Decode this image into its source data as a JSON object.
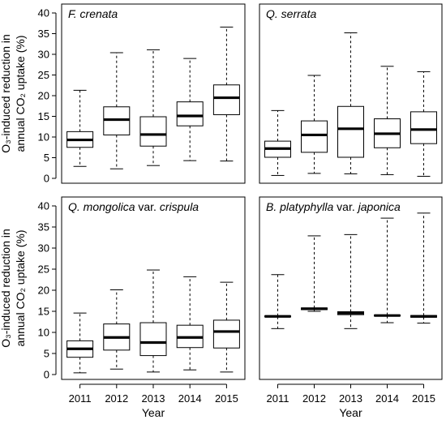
{
  "chart_data": {
    "type": "boxplot",
    "shared": {
      "categories": [
        "2011",
        "2012",
        "2013",
        "2014",
        "2015"
      ],
      "ylim": [
        0,
        40
      ],
      "yticks": [
        0,
        5,
        10,
        15,
        20,
        25,
        30,
        35,
        40
      ],
      "xlabel": "Year",
      "ylabel_line1": "O₃-induced reduction in",
      "ylabel_line2": "annual CO₂ uptake (%)"
    },
    "panels": [
      {
        "title_italic": "F. crenata",
        "title_suffix": "",
        "boxes": [
          {
            "min": 2.9,
            "q1": 7.5,
            "median": 9.3,
            "q3": 11.3,
            "max": 21.3
          },
          {
            "min": 2.3,
            "q1": 10.5,
            "median": 14.2,
            "q3": 17.3,
            "max": 30.4
          },
          {
            "min": 3.1,
            "q1": 7.8,
            "median": 10.6,
            "q3": 14.9,
            "max": 31.1
          },
          {
            "min": 4.3,
            "q1": 12.7,
            "median": 15.1,
            "q3": 18.5,
            "max": 29.0
          },
          {
            "min": 4.2,
            "q1": 15.4,
            "median": 19.5,
            "q3": 22.6,
            "max": 36.6
          }
        ]
      },
      {
        "title_italic": "Q. serrata",
        "title_suffix": "",
        "boxes": [
          {
            "min": 0.7,
            "q1": 5.1,
            "median": 7.2,
            "q3": 9.0,
            "max": 16.4
          },
          {
            "min": 1.2,
            "q1": 6.3,
            "median": 10.5,
            "q3": 13.9,
            "max": 24.9
          },
          {
            "min": 1.1,
            "q1": 5.1,
            "median": 12.0,
            "q3": 17.4,
            "max": 35.2
          },
          {
            "min": 0.9,
            "q1": 7.4,
            "median": 10.8,
            "q3": 14.4,
            "max": 27.1
          },
          {
            "min": 0.5,
            "q1": 8.4,
            "median": 11.8,
            "q3": 16.1,
            "max": 25.8
          }
        ]
      },
      {
        "title_italic": "Q. mongolica",
        "title_suffix": " var. ",
        "title_italic2": "crispula",
        "boxes": [
          {
            "min": 0.4,
            "q1": 4.1,
            "median": 6.1,
            "q3": 8.0,
            "max": 14.6
          },
          {
            "min": 1.3,
            "q1": 5.8,
            "median": 8.8,
            "q3": 12.0,
            "max": 20.1
          },
          {
            "min": 0.6,
            "q1": 4.5,
            "median": 7.6,
            "q3": 12.3,
            "max": 24.8
          },
          {
            "min": 1.1,
            "q1": 6.4,
            "median": 8.8,
            "q3": 11.7,
            "max": 23.2
          },
          {
            "min": 0.6,
            "q1": 6.3,
            "median": 10.2,
            "q3": 12.9,
            "max": 21.9
          }
        ]
      },
      {
        "title_italic": "B. platyphylla",
        "title_suffix": " var. ",
        "title_italic2": "japonica",
        "boxes": [
          {
            "min": 10.9,
            "q1": 13.7,
            "median": 13.8,
            "q3": 13.9,
            "max": 23.7
          },
          {
            "min": 15.0,
            "q1": 15.4,
            "median": 15.6,
            "q3": 15.8,
            "max": 32.9
          },
          {
            "min": 10.9,
            "q1": 14.2,
            "median": 14.6,
            "q3": 14.9,
            "max": 33.2
          },
          {
            "min": 12.3,
            "q1": 13.9,
            "median": 14.0,
            "q3": 14.1,
            "max": 37.1
          },
          {
            "min": 12.2,
            "q1": 13.6,
            "median": 13.8,
            "q3": 14.0,
            "max": 38.3
          }
        ]
      }
    ]
  }
}
